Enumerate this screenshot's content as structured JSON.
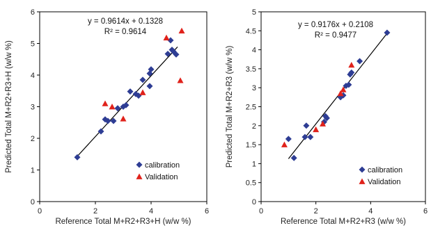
{
  "chart_data": [
    {
      "type": "scatter",
      "xlabel": "Reference Total M+R2+R3+H  (w/w %)",
      "ylabel": "Predicted Total M+R2+R3+H (w/w %)",
      "xlim": [
        0,
        6
      ],
      "ylim": [
        0,
        6
      ],
      "xticks": [
        0,
        2,
        4,
        6
      ],
      "yticks": [
        0,
        1,
        2,
        3,
        4,
        5,
        6
      ],
      "equation": "y = 0.9614x + 0.1328",
      "r2": "R² = 0.9614",
      "trendline": {
        "slope": 0.9614,
        "intercept": 0.1328,
        "x": [
          1.35,
          4.95
        ]
      },
      "series": [
        {
          "name": "calibration",
          "marker": "diamond",
          "color": "#2e3d94",
          "points": [
            [
              1.35,
              1.4
            ],
            [
              2.2,
              2.22
            ],
            [
              2.35,
              2.6
            ],
            [
              2.45,
              2.55
            ],
            [
              2.65,
              2.55
            ],
            [
              2.8,
              2.95
            ],
            [
              3.0,
              3.0
            ],
            [
              3.1,
              3.05
            ],
            [
              3.25,
              3.48
            ],
            [
              3.45,
              3.4
            ],
            [
              3.55,
              3.35
            ],
            [
              3.7,
              3.85
            ],
            [
              3.95,
              3.65
            ],
            [
              3.95,
              4.05
            ],
            [
              4.0,
              4.18
            ],
            [
              4.6,
              4.67
            ],
            [
              4.7,
              5.1
            ],
            [
              4.75,
              4.8
            ],
            [
              4.8,
              4.75
            ],
            [
              4.9,
              4.65
            ]
          ]
        },
        {
          "name": "Validation",
          "marker": "triangle",
          "color": "#e0221b",
          "points": [
            [
              2.35,
              3.1
            ],
            [
              2.6,
              3.0
            ],
            [
              3.0,
              2.62
            ],
            [
              3.7,
              3.45
            ],
            [
              4.55,
              5.18
            ],
            [
              5.05,
              3.83
            ],
            [
              5.1,
              5.4
            ]
          ]
        }
      ],
      "legend": "bottom-right"
    },
    {
      "type": "scatter",
      "xlabel": "Reference Total M+R2+R3  (w/w %)",
      "ylabel": "Predicted Total M+R2+R3 (w/w %)",
      "xlim": [
        0,
        6
      ],
      "ylim": [
        0,
        5
      ],
      "xticks": [
        0,
        2,
        4,
        6
      ],
      "yticks": [
        0,
        0.5,
        1,
        1.5,
        2,
        2.5,
        3,
        3.5,
        4,
        4.5,
        5
      ],
      "equation": "y = 0.9176x + 0.2108",
      "r2": "R² = 0.9477",
      "trendline": {
        "slope": 0.9176,
        "intercept": 0.2108,
        "x": [
          1.0,
          4.6
        ]
      },
      "series": [
        {
          "name": "calibration",
          "marker": "diamond",
          "color": "#2e3d94",
          "points": [
            [
              1.0,
              1.65
            ],
            [
              1.2,
              1.15
            ],
            [
              1.6,
              1.7
            ],
            [
              1.65,
              2.0
            ],
            [
              1.8,
              1.7
            ],
            [
              2.3,
              2.1
            ],
            [
              2.35,
              2.25
            ],
            [
              2.4,
              2.2
            ],
            [
              2.9,
              2.75
            ],
            [
              3.0,
              2.8
            ],
            [
              3.1,
              3.05
            ],
            [
              3.2,
              3.08
            ],
            [
              3.25,
              3.35
            ],
            [
              3.3,
              3.4
            ],
            [
              3.6,
              3.7
            ],
            [
              4.6,
              4.45
            ]
          ]
        },
        {
          "name": "Validation",
          "marker": "triangle",
          "color": "#e0221b",
          "points": [
            [
              0.85,
              1.5
            ],
            [
              2.0,
              1.9
            ],
            [
              2.25,
              2.05
            ],
            [
              2.9,
              2.85
            ],
            [
              3.0,
              2.95
            ],
            [
              3.3,
              3.6
            ]
          ]
        }
      ],
      "legend": "bottom-right"
    }
  ]
}
